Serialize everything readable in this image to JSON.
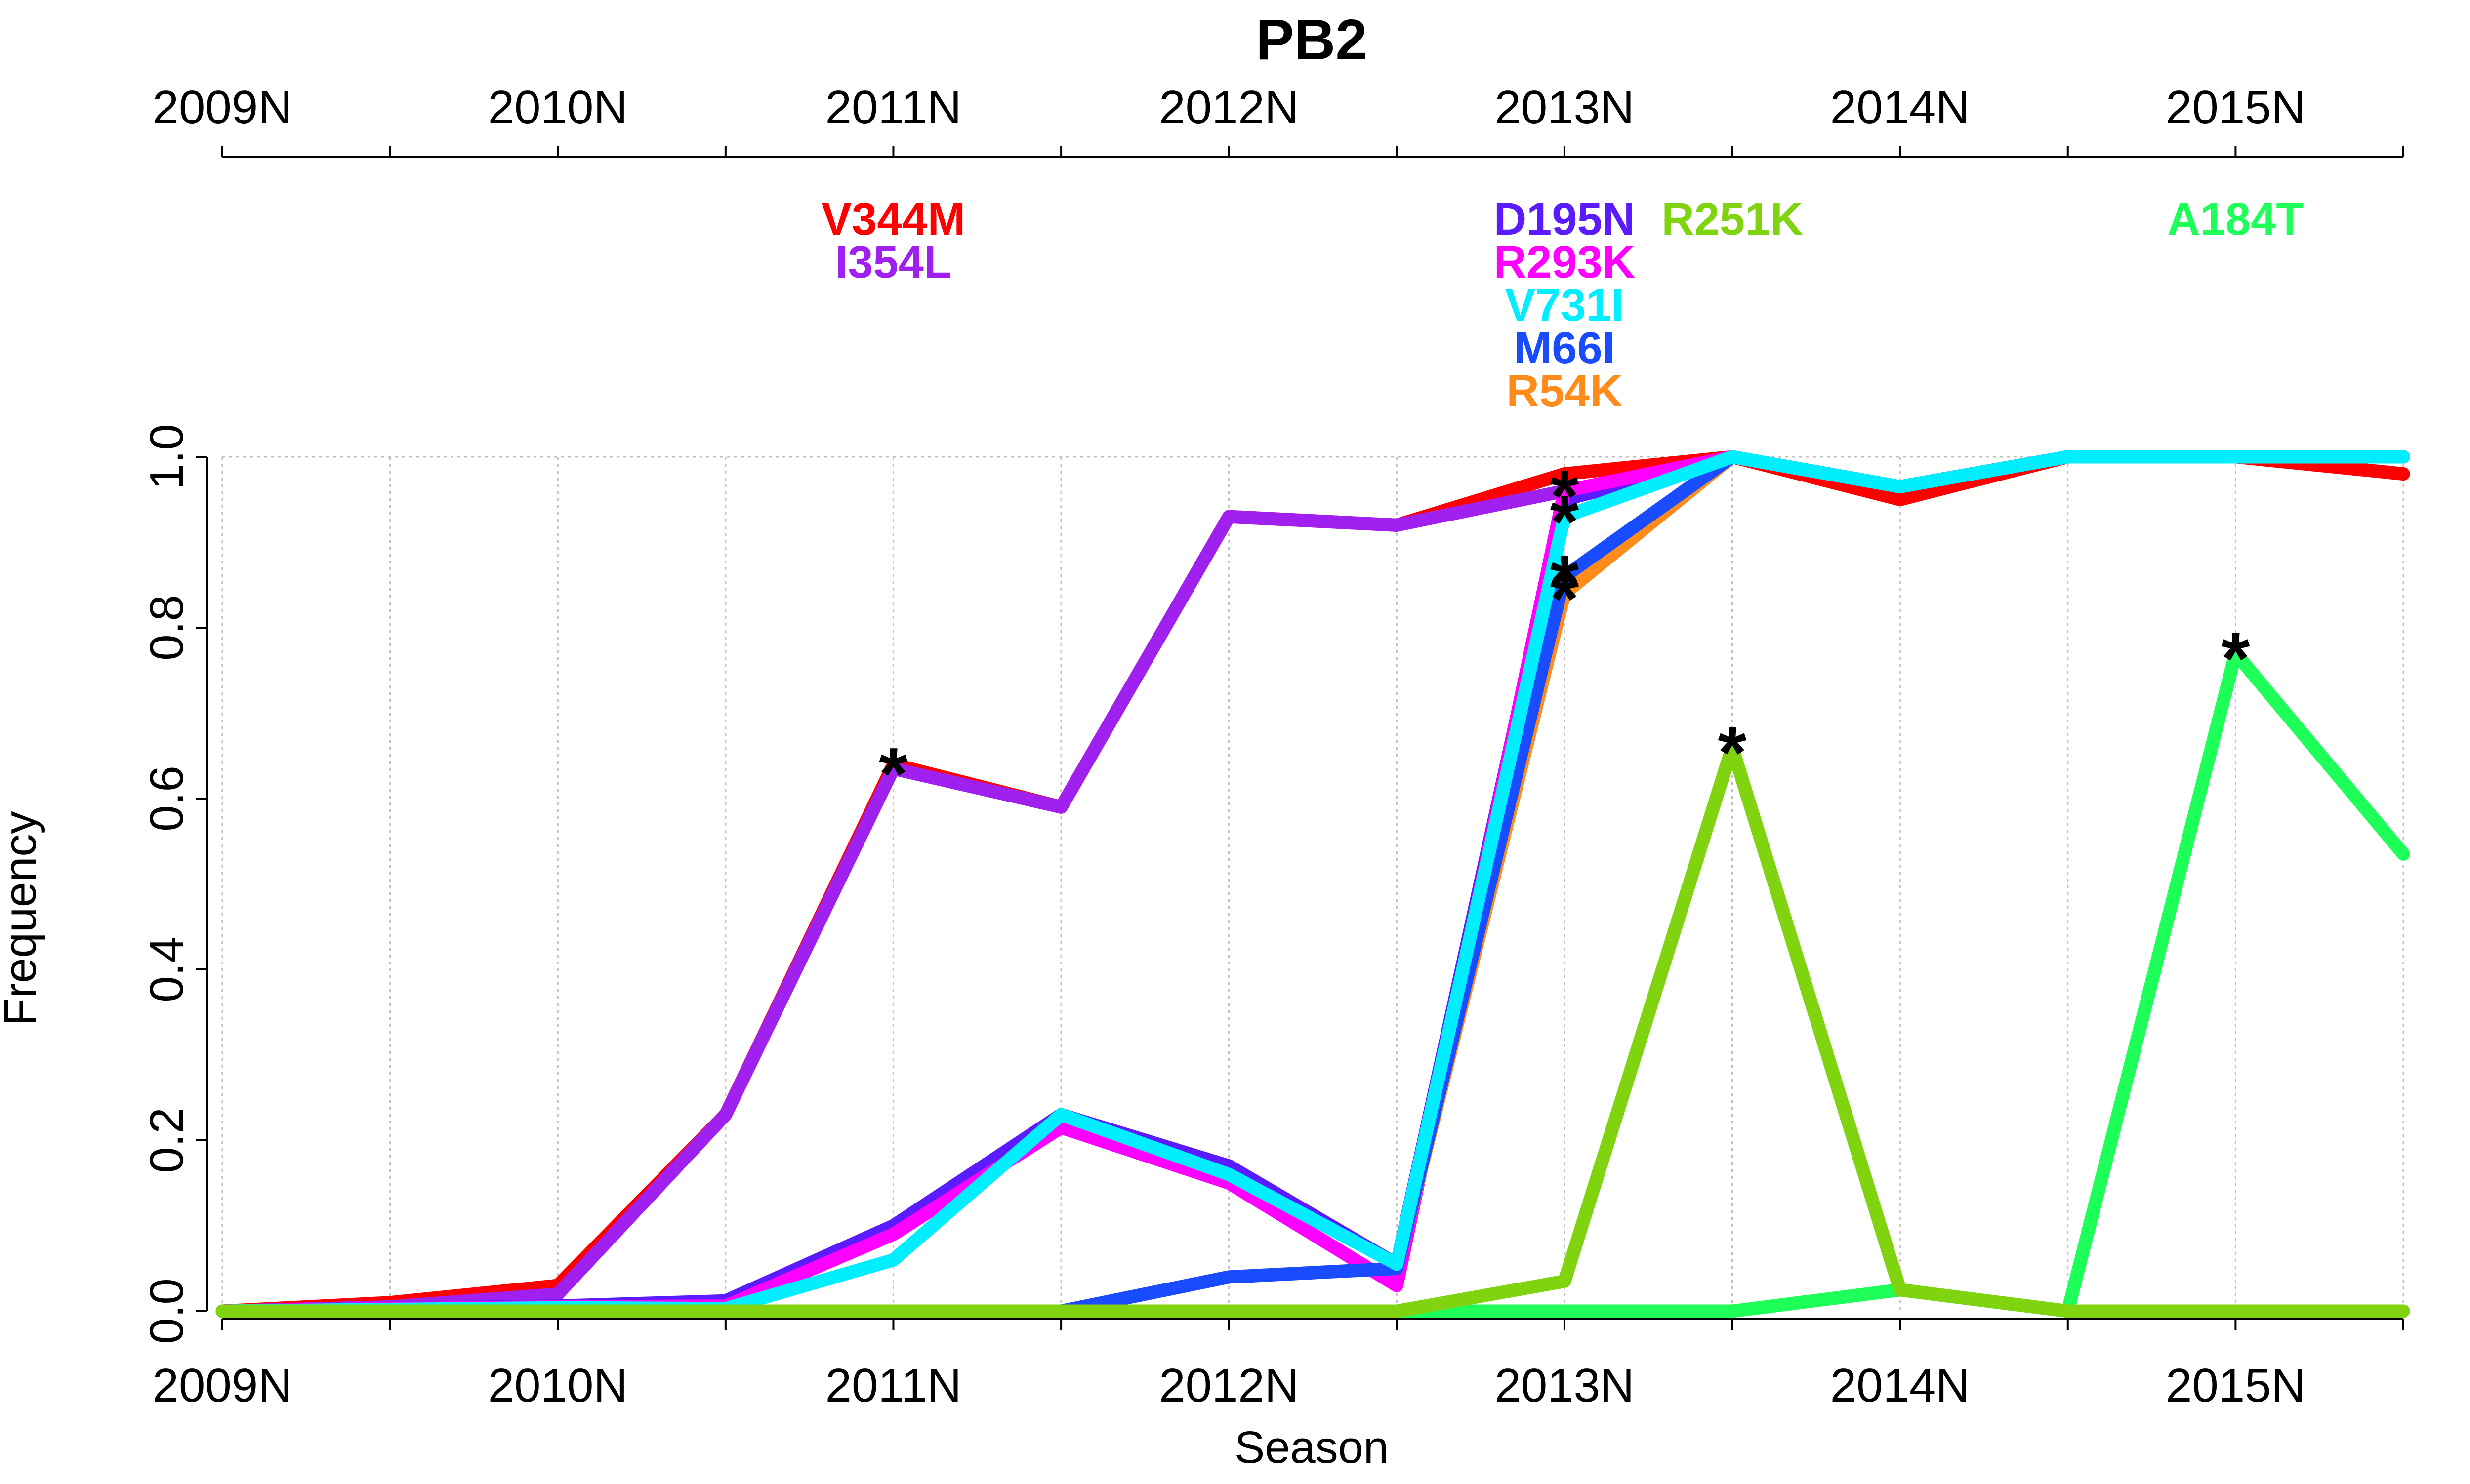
{
  "chart_data": {
    "type": "line",
    "title": "PB2",
    "xlabel": "Season",
    "ylabel": "Frequency",
    "ylim": [
      0,
      1
    ],
    "grid": true,
    "x": [
      2009,
      2009.5,
      2010,
      2010.5,
      2011,
      2011.5,
      2012,
      2012.5,
      2013,
      2013.5,
      2014,
      2014.5,
      2015,
      2015.5
    ],
    "x_ticks": [
      {
        "x": 2009,
        "label": "2009N"
      },
      {
        "x": 2010,
        "label": "2010N"
      },
      {
        "x": 2011,
        "label": "2011N"
      },
      {
        "x": 2012,
        "label": "2012N"
      },
      {
        "x": 2013,
        "label": "2013N"
      },
      {
        "x": 2014,
        "label": "2014N"
      },
      {
        "x": 2015,
        "label": "2015N"
      }
    ],
    "y_ticks": [
      "0.0",
      "0.2",
      "0.4",
      "0.6",
      "0.8",
      "1.0"
    ],
    "series": [
      {
        "name": "V344M",
        "color": "#ff0000",
        "label_x": 2011,
        "label_row": 0,
        "values": [
          0,
          0.01,
          0.03,
          0.23,
          0.64,
          0.59,
          0.93,
          0.92,
          0.98,
          1.0,
          0.95,
          1.0,
          1.0,
          0.98
        ]
      },
      {
        "name": "I354L",
        "color": "#a020f0",
        "label_x": 2011,
        "label_row": 1,
        "values": [
          0,
          0.005,
          0.02,
          0.23,
          0.635,
          0.59,
          0.93,
          0.92,
          0.96,
          1.0,
          0.965,
          1.0,
          1.0,
          1.0
        ]
      },
      {
        "name": "D195N",
        "color": "#5a1bff",
        "label_x": 2013,
        "label_row": 0,
        "values": [
          0,
          0.003,
          0.006,
          0.012,
          0.1,
          0.23,
          0.17,
          0.055,
          0.95,
          1.0,
          0.965,
          1.0,
          1.0,
          1.0
        ]
      },
      {
        "name": "R293K",
        "color": "#ff00ff",
        "label_x": 2013,
        "label_row": 1,
        "values": [
          0,
          0.003,
          0.005,
          0.006,
          0.09,
          0.215,
          0.15,
          0.03,
          0.96,
          1.0,
          0.965,
          1.0,
          1.0,
          1.0
        ]
      },
      {
        "name": "R54K",
        "color": "#ff8c1a",
        "label_x": 2013,
        "label_row": 4,
        "values": [
          0,
          0,
          0,
          0,
          0,
          0,
          0.04,
          0.05,
          0.84,
          1.0,
          0.965,
          1.0,
          1.0,
          1.0
        ]
      },
      {
        "name": "M66I",
        "color": "#1a4cff",
        "label_x": 2013,
        "label_row": 3,
        "values": [
          0,
          0,
          0,
          0,
          0,
          0,
          0.04,
          0.05,
          0.86,
          1.0,
          0.965,
          1.0,
          1.0,
          1.0
        ]
      },
      {
        "name": "V731I",
        "color": "#00eeff",
        "label_x": 2013,
        "label_row": 2,
        "values": [
          0,
          0.002,
          0.004,
          0.003,
          0.06,
          0.23,
          0.16,
          0.055,
          0.93,
          1.0,
          0.965,
          1.0,
          1.0,
          1.0
        ]
      },
      {
        "name": "A184T",
        "color": "#1fff5a",
        "label_x": 2015,
        "label_row": 0,
        "values": [
          0,
          0,
          0,
          0,
          0,
          0,
          0,
          0,
          0,
          0,
          0.025,
          0,
          0.77,
          0.535
        ]
      },
      {
        "name": "R251K",
        "color": "#7fd40f",
        "label_x": 2013.5,
        "label_row": 0,
        "values": [
          0,
          0,
          0,
          0,
          0,
          0,
          0,
          0,
          0.035,
          0.66,
          0.025,
          0,
          0,
          0
        ]
      }
    ],
    "markers": [
      {
        "symbol": "*",
        "x": 2011,
        "y": 0.635
      },
      {
        "symbol": "*",
        "x": 2013,
        "y": 0.96
      },
      {
        "symbol": "*",
        "x": 2013,
        "y": 0.93
      },
      {
        "symbol": "*",
        "x": 2013,
        "y": 0.86
      },
      {
        "symbol": "*",
        "x": 2013,
        "y": 0.84
      },
      {
        "symbol": "*",
        "x": 2013.5,
        "y": 0.66
      },
      {
        "symbol": "*",
        "x": 2015,
        "y": 0.77
      }
    ]
  }
}
